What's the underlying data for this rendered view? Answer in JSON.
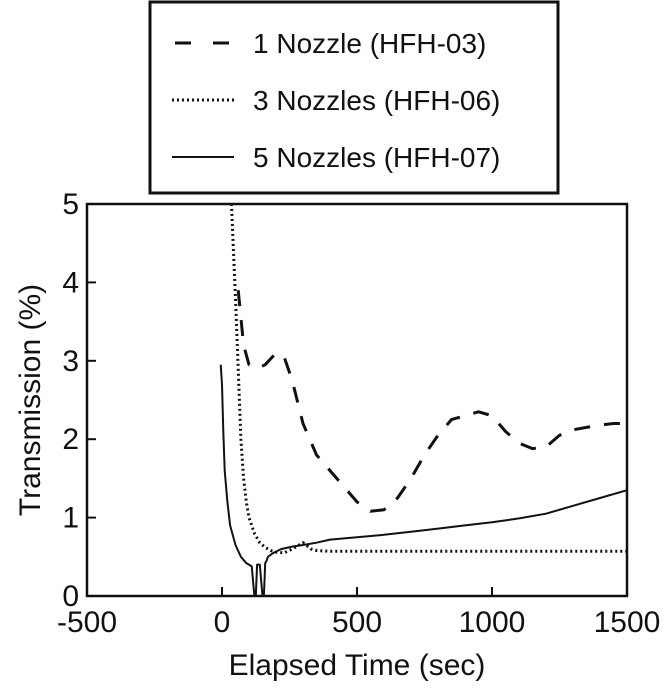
{
  "chart_data": {
    "type": "line",
    "title": "",
    "xlabel": "Elapsed Time (sec)",
    "ylabel": "Transmission (%)",
    "xlim": [
      -500,
      1500
    ],
    "ylim": [
      0,
      5
    ],
    "x_ticks": [
      -500,
      0,
      500,
      1000,
      1500
    ],
    "y_ticks": [
      0,
      1,
      2,
      3,
      4,
      5
    ],
    "x_tick_labels": [
      "-500",
      "0",
      "500",
      "1000",
      "1500"
    ],
    "y_tick_labels": [
      "0",
      "1",
      "2",
      "3",
      "4",
      "5"
    ],
    "grid": false,
    "legend_position": "top-center, outside plot area",
    "series": [
      {
        "name": "1 Nozzle (HFH-03)",
        "style": "dashed",
        "color": "#111111",
        "x": [
          60,
          80,
          100,
          130,
          160,
          200,
          230,
          260,
          300,
          350,
          400,
          450,
          500,
          550,
          600,
          650,
          700,
          750,
          800,
          850,
          900,
          950,
          1000,
          1050,
          1100,
          1150,
          1200,
          1250,
          1300,
          1350,
          1400,
          1450,
          1500
        ],
        "y": [
          3.9,
          3.2,
          2.95,
          2.9,
          2.95,
          3.1,
          3.05,
          2.75,
          2.2,
          1.8,
          1.6,
          1.4,
          1.2,
          1.08,
          1.1,
          1.25,
          1.5,
          1.8,
          2.05,
          2.25,
          2.3,
          2.35,
          2.3,
          2.1,
          1.95,
          1.88,
          1.9,
          2.05,
          2.12,
          2.15,
          2.18,
          2.2,
          2.2
        ]
      },
      {
        "name": "3 Nozzles (HFH-06)",
        "style": "dotted",
        "color": "#111111",
        "x": [
          35,
          40,
          50,
          60,
          70,
          80,
          90,
          100,
          120,
          140,
          160,
          180,
          200,
          230,
          260,
          300,
          330,
          350,
          400,
          600,
          800,
          1000,
          1200,
          1400,
          1500
        ],
        "y": [
          5.0,
          4.6,
          3.8,
          2.9,
          2.0,
          1.5,
          1.2,
          1.0,
          0.8,
          0.68,
          0.62,
          0.58,
          0.56,
          0.55,
          0.6,
          0.68,
          0.6,
          0.58,
          0.57,
          0.57,
          0.57,
          0.57,
          0.57,
          0.57,
          0.57
        ]
      },
      {
        "name": "5 Nozzles (HFH-07)",
        "style": "solid",
        "color": "#111111",
        "x": [
          -5,
          0,
          5,
          10,
          20,
          30,
          50,
          70,
          90,
          110,
          120,
          125,
          130,
          140,
          150,
          155,
          160,
          165,
          170,
          190,
          220,
          260,
          300,
          350,
          400,
          500,
          600,
          700,
          800,
          900,
          1000,
          1100,
          1200,
          1300,
          1400,
          1500
        ],
        "y": [
          2.95,
          2.7,
          2.1,
          1.6,
          1.2,
          0.9,
          0.65,
          0.5,
          0.42,
          0.38,
          0.0,
          0.0,
          0.4,
          0.4,
          0.0,
          0.0,
          0.42,
          0.45,
          0.5,
          0.55,
          0.6,
          0.63,
          0.65,
          0.68,
          0.72,
          0.75,
          0.78,
          0.82,
          0.86,
          0.9,
          0.94,
          0.99,
          1.05,
          1.15,
          1.25,
          1.35
        ]
      }
    ]
  }
}
